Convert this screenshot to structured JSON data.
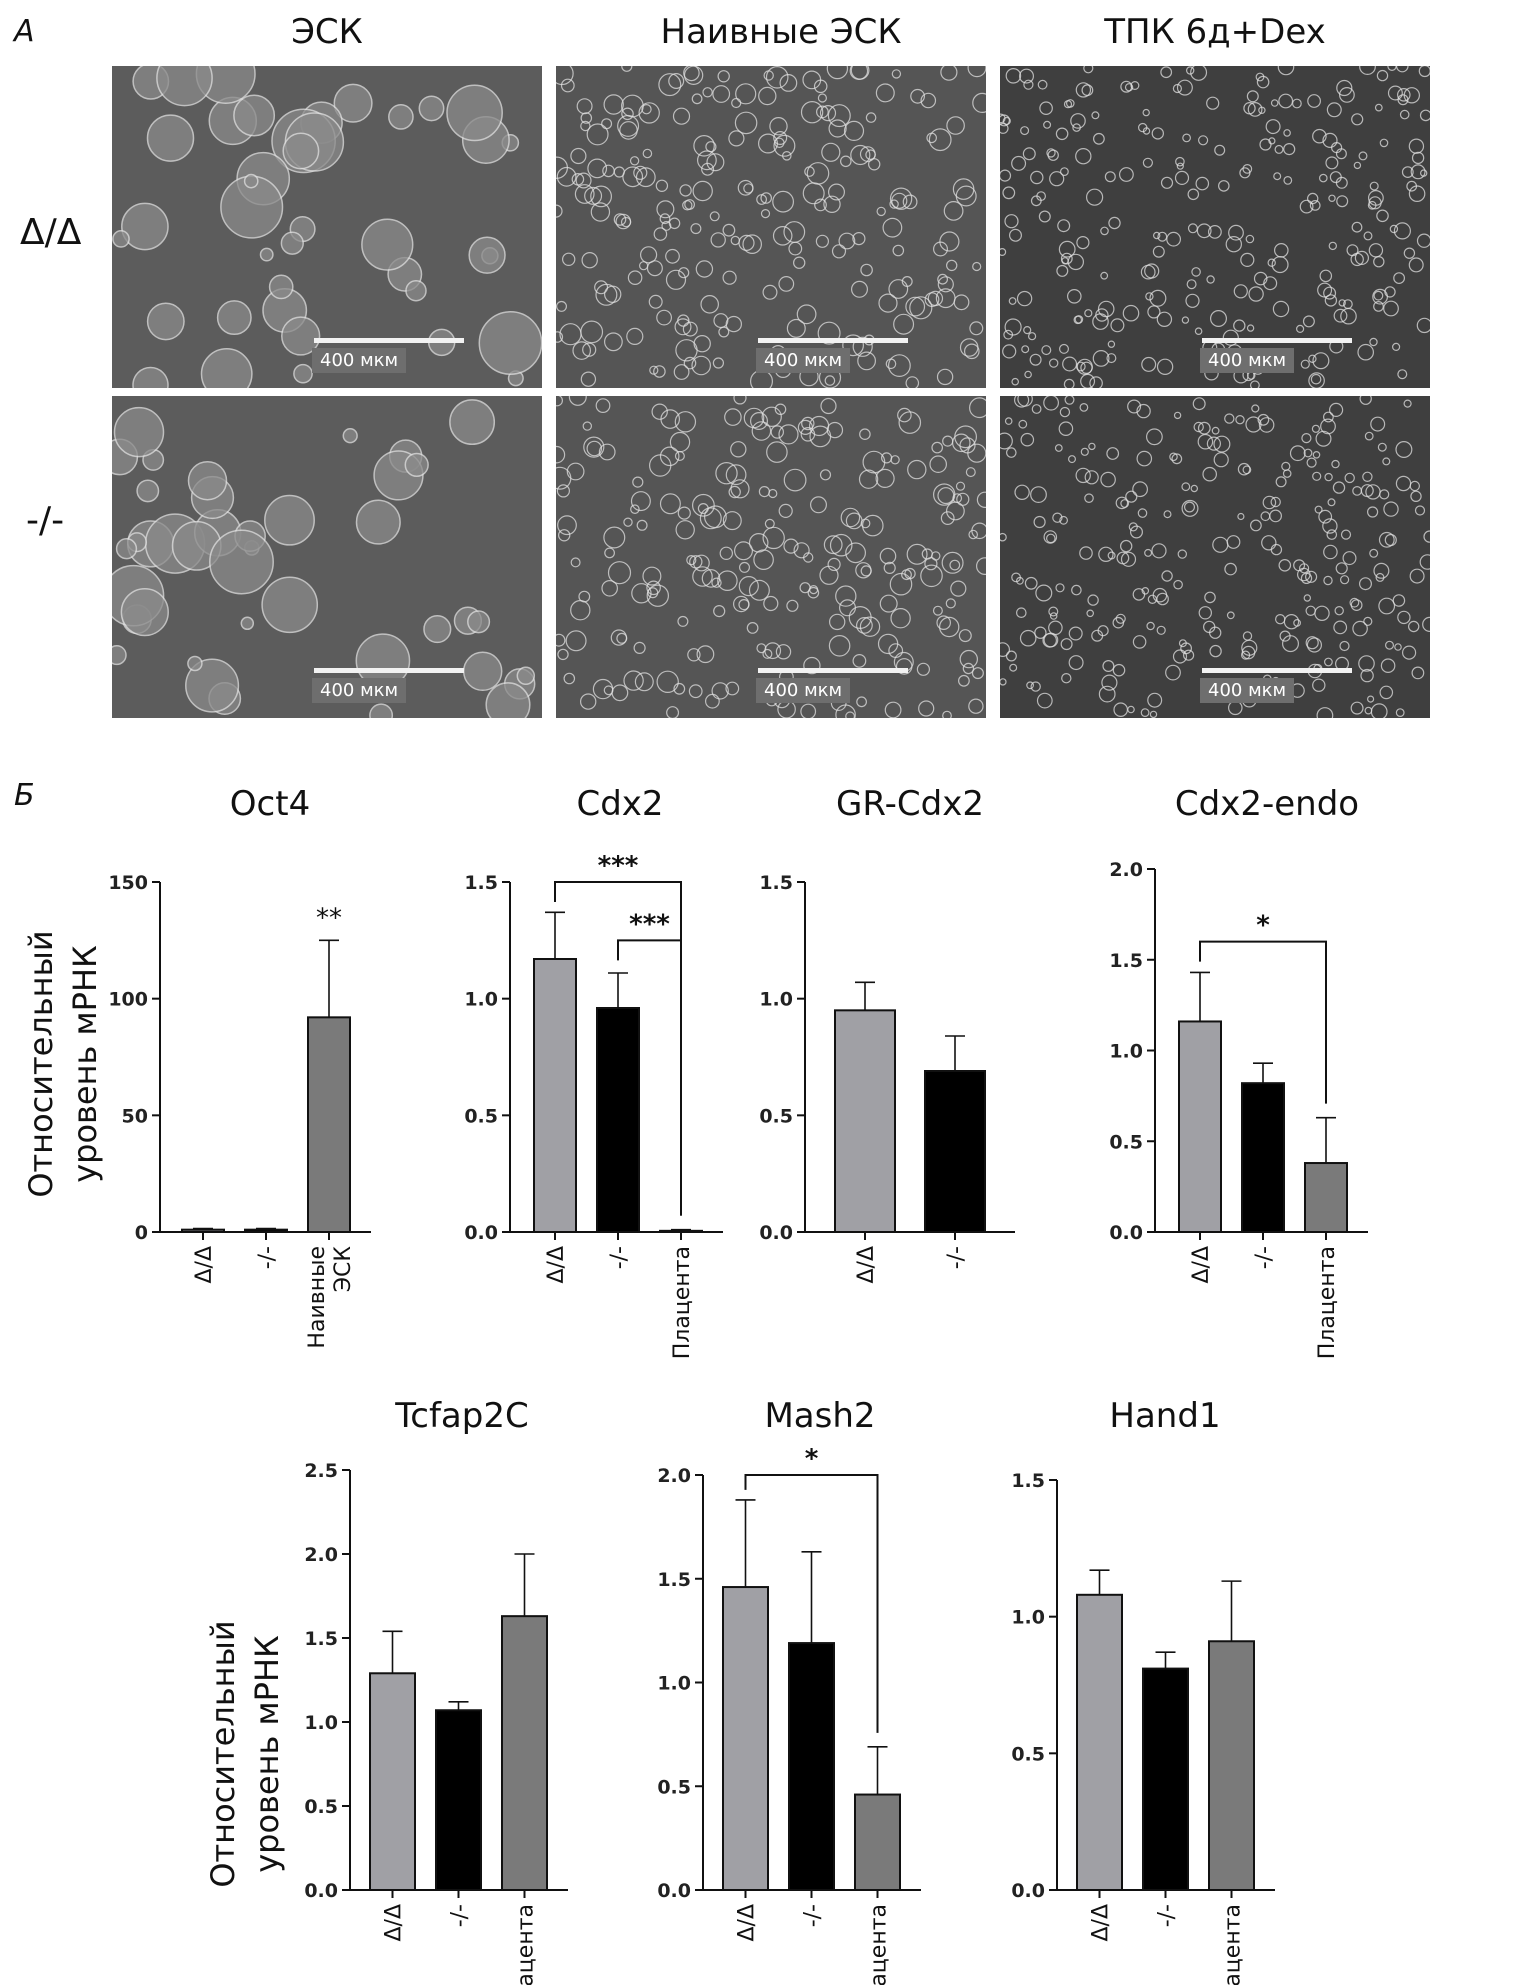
{
  "panel_a": {
    "letter": "А",
    "column_titles": [
      "ЭСК",
      "Наивные ЭСК",
      "ТПК 6д+Dex"
    ],
    "row_labels": [
      "Δ/Δ",
      "-/-"
    ],
    "scale_label": "400 мкм"
  },
  "panel_b": {
    "letter": "Б",
    "ylabel_line1": "Относительный",
    "ylabel_line2": "уровень мРНК"
  },
  "chart_data": [
    {
      "type": "bar",
      "title": "Oct4",
      "categories": [
        "Δ/Δ",
        "-/-",
        "Наивные ЭСК"
      ],
      "values": [
        1,
        1,
        92
      ],
      "errors": [
        0.5,
        0.5,
        33
      ],
      "ylim": [
        0,
        150
      ],
      "yticks": [
        "0",
        "50",
        "100",
        "150"
      ],
      "colors": [
        "#a0a0a5",
        "#000000",
        "#7a7a7a"
      ],
      "annotations": [
        {
          "type": "star",
          "bar": 2,
          "text": "**"
        }
      ]
    },
    {
      "type": "bar",
      "title": "Cdx2",
      "categories": [
        "Δ/Δ",
        "-/-",
        "Плацента"
      ],
      "values": [
        1.17,
        0.96,
        0.005
      ],
      "errors": [
        0.2,
        0.15,
        0.005
      ],
      "ylim": [
        0,
        1.5
      ],
      "yticks": [
        "0.0",
        "0.5",
        "1.0",
        "1.5"
      ],
      "colors": [
        "#a0a0a5",
        "#000000",
        "#7a7a7a"
      ],
      "annotations": [
        {
          "type": "bracket",
          "from": 0,
          "to": 2,
          "text": "***",
          "level": 1.5
        },
        {
          "type": "bracket",
          "from": 1,
          "to": 2,
          "text": "***",
          "level": 1.25
        }
      ]
    },
    {
      "type": "bar",
      "title": "GR-Cdx2",
      "categories": [
        "Δ/Δ",
        "-/-"
      ],
      "values": [
        0.95,
        0.69
      ],
      "errors": [
        0.12,
        0.15
      ],
      "ylim": [
        0,
        1.5
      ],
      "yticks": [
        "0.0",
        "0.5",
        "1.0",
        "1.5"
      ],
      "colors": [
        "#a0a0a5",
        "#000000"
      ],
      "annotations": []
    },
    {
      "type": "bar",
      "title": "Cdx2-endo",
      "categories": [
        "Δ/Δ",
        "-/-",
        "Плацента"
      ],
      "values": [
        1.16,
        0.82,
        0.38
      ],
      "errors": [
        0.27,
        0.11,
        0.25
      ],
      "ylim": [
        0,
        2.0
      ],
      "yticks": [
        "0.0",
        "0.5",
        "1.0",
        "1.5",
        "2.0"
      ],
      "colors": [
        "#a0a0a5",
        "#000000",
        "#7a7a7a"
      ],
      "annotations": [
        {
          "type": "bracket",
          "from": 0,
          "to": 2,
          "text": "*",
          "level": 1.6
        }
      ]
    },
    {
      "type": "bar",
      "title": "Tcfap2C",
      "categories": [
        "Δ/Δ",
        "-/-",
        "Плацента"
      ],
      "values": [
        1.29,
        1.07,
        1.63
      ],
      "errors": [
        0.25,
        0.05,
        0.37
      ],
      "ylim": [
        0,
        2.5
      ],
      "yticks": [
        "0.0",
        "0.5",
        "1.0",
        "1.5",
        "2.0",
        "2.5"
      ],
      "colors": [
        "#a0a0a5",
        "#000000",
        "#7a7a7a"
      ],
      "annotations": []
    },
    {
      "type": "bar",
      "title": "Mash2",
      "categories": [
        "Δ/Δ",
        "-/-",
        "Плацента"
      ],
      "values": [
        1.46,
        1.19,
        0.46
      ],
      "errors": [
        0.42,
        0.44,
        0.23
      ],
      "ylim": [
        0,
        2.0
      ],
      "yticks": [
        "0.0",
        "0.5",
        "1.0",
        "1.5",
        "2.0"
      ],
      "colors": [
        "#a0a0a5",
        "#000000",
        "#7a7a7a"
      ],
      "annotations": [
        {
          "type": "bracket",
          "from": 0,
          "to": 2,
          "text": "*",
          "level": 2.0
        }
      ]
    },
    {
      "type": "bar",
      "title": "Hand1",
      "categories": [
        "Δ/Δ",
        "-/-",
        "Плацента"
      ],
      "values": [
        1.08,
        0.81,
        0.91
      ],
      "errors": [
        0.09,
        0.06,
        0.22
      ],
      "ylim": [
        0,
        1.5
      ],
      "yticks": [
        "0.0",
        "0.5",
        "1.0",
        "1.5"
      ],
      "colors": [
        "#a0a0a5",
        "#000000",
        "#7a7a7a"
      ],
      "annotations": []
    }
  ]
}
